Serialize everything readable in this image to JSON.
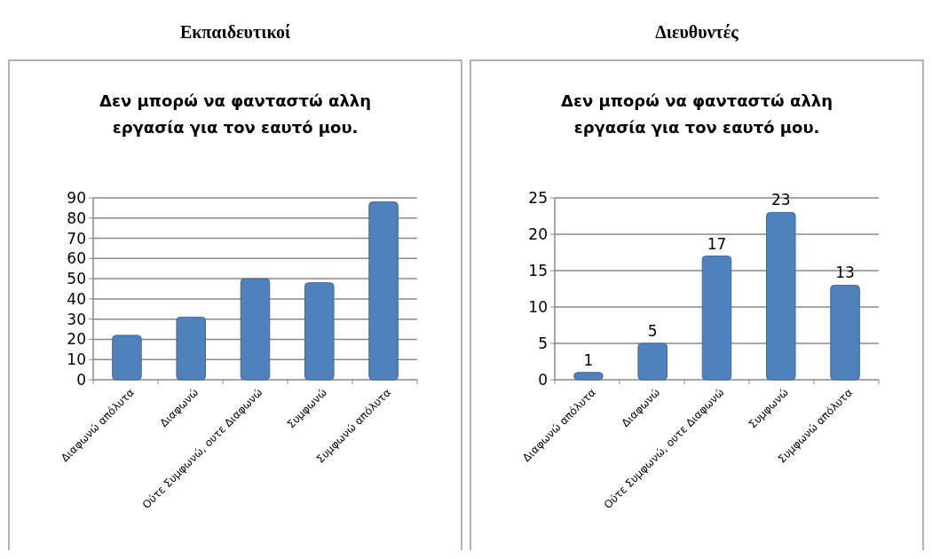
{
  "chart_data": [
    {
      "type": "bar",
      "title": "Εκπαιδευτικοί",
      "subtitle": "Δεν μπορώ να φανταστώ αλλη εργασία για τον εαυτό μου.",
      "categories": [
        "Διαφωνώ απόλυτα",
        "Διαφωνώ",
        "Ούτε Συμφωνώ, ουτε Διαφωνώ",
        "Συμφωνώ",
        "Συμφωνώ απόλυτα"
      ],
      "values": [
        22,
        31,
        50,
        48,
        88
      ],
      "color": "#4f81bd",
      "ylim": [
        0,
        90
      ],
      "yticks": [
        0,
        10,
        20,
        30,
        40,
        50,
        60,
        70,
        80,
        90
      ],
      "grid": "y"
    },
    {
      "type": "bar",
      "title": "Διευθυντές",
      "subtitle": "Δεν μπορώ να φανταστώ αλλη εργασία για τον εαυτό μου.",
      "categories": [
        "Διαφωνώ απόλυτα",
        "Διαφωνώ",
        "Ούτε Συμφωνώ, ουτε Διαφωνώ",
        "Συμφωνώ",
        "Συμφωνώ απόλυτα"
      ],
      "values": [
        1,
        5,
        17,
        23,
        13
      ],
      "color": "#4f81bd",
      "ylim": [
        0,
        25
      ],
      "yticks": [
        0,
        5,
        10,
        15,
        20,
        25
      ],
      "grid": "y",
      "data_labels": true
    }
  ]
}
